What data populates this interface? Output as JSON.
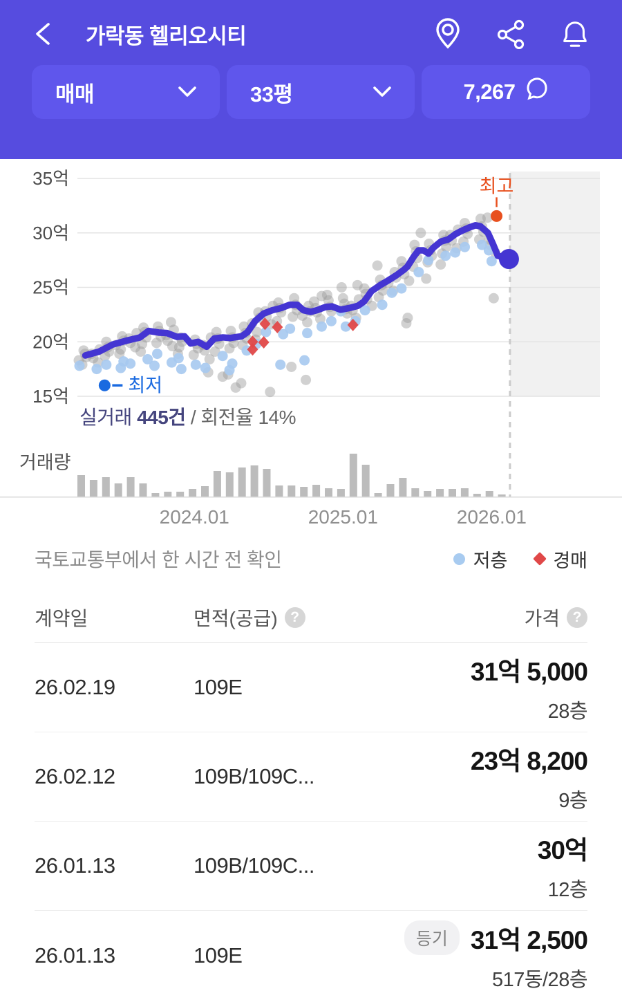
{
  "header": {
    "title": "가락동 헬리오시티",
    "icons": [
      "location-icon",
      "share-icon",
      "bell-icon"
    ],
    "filters": [
      {
        "label": "매매",
        "trailing": "chevron-down"
      },
      {
        "label": "33평",
        "trailing": "chevron-down"
      },
      {
        "label": "7,267",
        "trailing": "chat-bubble"
      }
    ]
  },
  "colors": {
    "header_bg": "#564CDF",
    "button_bg": "#5F56EC",
    "trend_line": "#4435D2",
    "max_marker": "#E8501E",
    "min_marker": "#1A6AE0",
    "gray_point": "#999999",
    "low_floor_point": "#A6C9EF",
    "auction_point": "#E04848",
    "volume_bar": "#BCBCBC",
    "grid_line": "#E3E3E3",
    "future_shade": "#F1F1F1",
    "dashed_line": "#CBCBCB"
  },
  "chart_data": {
    "type": "scatter+line+bar",
    "y_axis": {
      "ticks": [
        {
          "label": "35억",
          "value": 35
        },
        {
          "label": "30억",
          "value": 30
        },
        {
          "label": "25억",
          "value": 25
        },
        {
          "label": "20억",
          "value": 20
        },
        {
          "label": "15억",
          "value": 15
        }
      ],
      "ylim": [
        15,
        35.5
      ],
      "grid": true
    },
    "x_axis": {
      "ticks": [
        {
          "label": "2024.01",
          "m": 9
        },
        {
          "label": "2025.01",
          "m": 21
        },
        {
          "label": "2026.01",
          "m": 33
        }
      ],
      "months_span": "2023.04 - 2026.03"
    },
    "divider_m": 34.48,
    "annotations": {
      "max": {
        "label": "최고",
        "m": 33.4,
        "p": 31.55
      },
      "min": {
        "label": "최저",
        "m": 1.75,
        "p": 16.0
      }
    },
    "trend": [
      [
        0.2,
        18.75
      ],
      [
        1.3,
        19.1
      ],
      [
        2.4,
        19.75
      ],
      [
        3.5,
        20.1
      ],
      [
        4.6,
        20.4
      ],
      [
        5.3,
        21.0
      ],
      [
        6.1,
        20.85
      ],
      [
        6.8,
        20.8
      ],
      [
        7.6,
        20.45
      ],
      [
        8.2,
        20.5
      ],
      [
        8.7,
        19.85
      ],
      [
        9.3,
        20.0
      ],
      [
        10.0,
        19.55
      ],
      [
        10.6,
        20.3
      ],
      [
        11.3,
        20.4
      ],
      [
        11.9,
        20.35
      ],
      [
        12.8,
        20.5
      ],
      [
        13.3,
        20.9
      ],
      [
        13.9,
        21.9
      ],
      [
        14.6,
        22.6
      ],
      [
        15.3,
        22.9
      ],
      [
        16.0,
        23.1
      ],
      [
        16.7,
        23.4
      ],
      [
        17.3,
        23.4
      ],
      [
        17.8,
        22.9
      ],
      [
        18.4,
        22.75
      ],
      [
        18.9,
        22.9
      ],
      [
        19.6,
        23.2
      ],
      [
        20.1,
        23.25
      ],
      [
        20.8,
        22.95
      ],
      [
        21.5,
        23.1
      ],
      [
        22.2,
        23.3
      ],
      [
        22.7,
        23.7
      ],
      [
        23.3,
        24.65
      ],
      [
        24.0,
        25.2
      ],
      [
        24.6,
        25.6
      ],
      [
        25.3,
        26.1
      ],
      [
        25.9,
        26.6
      ],
      [
        26.2,
        26.9
      ],
      [
        26.7,
        27.8
      ],
      [
        27.1,
        28.4
      ],
      [
        27.5,
        28.4
      ],
      [
        27.9,
        28.1
      ],
      [
        28.3,
        28.65
      ],
      [
        28.9,
        29.2
      ],
      [
        29.5,
        29.4
      ],
      [
        30.1,
        29.9
      ],
      [
        30.6,
        30.2
      ],
      [
        31.2,
        30.5
      ],
      [
        31.7,
        30.7
      ],
      [
        32.1,
        30.6
      ],
      [
        32.7,
        30.0
      ],
      [
        33.1,
        29.0
      ],
      [
        33.5,
        27.9
      ],
      [
        34.4,
        27.6
      ]
    ],
    "scatter": {
      "gray": [
        [
          0,
          18.3
        ],
        [
          0,
          18.6
        ],
        [
          0,
          18.9
        ],
        [
          0,
          19.2
        ],
        [
          0,
          17.9
        ],
        [
          1,
          18.5
        ],
        [
          1,
          18.9
        ],
        [
          1,
          19.3
        ],
        [
          1,
          18.1
        ],
        [
          2,
          19.1
        ],
        [
          2,
          19.5
        ],
        [
          2,
          20.0
        ],
        [
          2,
          18.7
        ],
        [
          3,
          19.7
        ],
        [
          3,
          20.1
        ],
        [
          3,
          20.5
        ],
        [
          3,
          19.3
        ],
        [
          3,
          18.9
        ],
        [
          4,
          19.9
        ],
        [
          4,
          20.3
        ],
        [
          4,
          20.8
        ],
        [
          4,
          19.5
        ],
        [
          5,
          20.4
        ],
        [
          5,
          20.9
        ],
        [
          5,
          21.3
        ],
        [
          5,
          19.8
        ],
        [
          5,
          19.1
        ],
        [
          6,
          20.5
        ],
        [
          6,
          21.0
        ],
        [
          6,
          21.4
        ],
        [
          6,
          19.9
        ],
        [
          7,
          20.1
        ],
        [
          7,
          20.6
        ],
        [
          7,
          21.1
        ],
        [
          7,
          19.6
        ],
        [
          7,
          21.8
        ],
        [
          8,
          20.0
        ],
        [
          8,
          20.4
        ],
        [
          8,
          19.5
        ],
        [
          8,
          18.9
        ],
        [
          9,
          19.4
        ],
        [
          9,
          19.8
        ],
        [
          9,
          20.2
        ],
        [
          9,
          18.8
        ],
        [
          10,
          19.2
        ],
        [
          10,
          19.7
        ],
        [
          10,
          20.4
        ],
        [
          10,
          18.4
        ],
        [
          10,
          17.2
        ],
        [
          11,
          19.8
        ],
        [
          11,
          20.3
        ],
        [
          11,
          20.9
        ],
        [
          11,
          19.1
        ],
        [
          11,
          16.8
        ],
        [
          12,
          19.9
        ],
        [
          12,
          20.4
        ],
        [
          12,
          21.0
        ],
        [
          12,
          19.4
        ],
        [
          12,
          17.0
        ],
        [
          12,
          15.8
        ],
        [
          13,
          20.3
        ],
        [
          13,
          20.8
        ],
        [
          13,
          21.4
        ],
        [
          13,
          19.7
        ],
        [
          13,
          16.2
        ],
        [
          14,
          21.7
        ],
        [
          14,
          22.2
        ],
        [
          14,
          22.7
        ],
        [
          14,
          20.9
        ],
        [
          14,
          20.2
        ],
        [
          15,
          22.3
        ],
        [
          15,
          22.8
        ],
        [
          15,
          23.3
        ],
        [
          15,
          21.6
        ],
        [
          15,
          15.4
        ],
        [
          16,
          22.7
        ],
        [
          16,
          23.1
        ],
        [
          16,
          23.6
        ],
        [
          16,
          21.9
        ],
        [
          17,
          22.9
        ],
        [
          17,
          23.4
        ],
        [
          17,
          24.0
        ],
        [
          17,
          22.3
        ],
        [
          17,
          17.7
        ],
        [
          18,
          22.4
        ],
        [
          18,
          22.8
        ],
        [
          18,
          23.3
        ],
        [
          18,
          21.8
        ],
        [
          18,
          16.5
        ],
        [
          19,
          22.7
        ],
        [
          19,
          23.1
        ],
        [
          19,
          23.7
        ],
        [
          19,
          24.2
        ],
        [
          19,
          22.1
        ],
        [
          20,
          22.8
        ],
        [
          20,
          23.2
        ],
        [
          20,
          23.8
        ],
        [
          20,
          24.3
        ],
        [
          21,
          22.6
        ],
        [
          21,
          23.0
        ],
        [
          21,
          23.5
        ],
        [
          21,
          24.0
        ],
        [
          21,
          25.0
        ],
        [
          22,
          22.9
        ],
        [
          22,
          23.3
        ],
        [
          22,
          23.9
        ],
        [
          22,
          25.2
        ],
        [
          22,
          22.2
        ],
        [
          23,
          23.9
        ],
        [
          23,
          24.4
        ],
        [
          23,
          24.9
        ],
        [
          23,
          23.3
        ],
        [
          24,
          24.7
        ],
        [
          24,
          25.2
        ],
        [
          24,
          25.7
        ],
        [
          24,
          24.1
        ],
        [
          24,
          27.0
        ],
        [
          25,
          25.4
        ],
        [
          25,
          25.9
        ],
        [
          25,
          26.4
        ],
        [
          25,
          24.7
        ],
        [
          26,
          26.2
        ],
        [
          26,
          26.8
        ],
        [
          26,
          27.4
        ],
        [
          26,
          25.6
        ],
        [
          26,
          22.2
        ],
        [
          26,
          21.7
        ],
        [
          27,
          27.7
        ],
        [
          27,
          28.3
        ],
        [
          27,
          28.9
        ],
        [
          27,
          26.9
        ],
        [
          27,
          30.0
        ],
        [
          28,
          27.9
        ],
        [
          28,
          28.4
        ],
        [
          28,
          29.0
        ],
        [
          28,
          27.3
        ],
        [
          28,
          25.8
        ],
        [
          29,
          28.7
        ],
        [
          29,
          29.3
        ],
        [
          29,
          29.8
        ],
        [
          29,
          28.1
        ],
        [
          29,
          27.1
        ],
        [
          30,
          29.3
        ],
        [
          30,
          29.8
        ],
        [
          30,
          30.3
        ],
        [
          30,
          28.6
        ],
        [
          31,
          29.9
        ],
        [
          31,
          30.4
        ],
        [
          31,
          30.9
        ],
        [
          31,
          29.2
        ],
        [
          32,
          30.1
        ],
        [
          32,
          30.6
        ],
        [
          32,
          31.3
        ],
        [
          32,
          29.4
        ],
        [
          33,
          28.9
        ],
        [
          33,
          29.4
        ],
        [
          33,
          31.4
        ],
        [
          33,
          28.2
        ],
        [
          33,
          24.0
        ]
      ],
      "low_floor": [
        [
          0,
          17.8
        ],
        [
          1,
          17.5
        ],
        [
          2,
          17.9
        ],
        [
          3,
          18.2
        ],
        [
          3,
          17.6
        ],
        [
          4,
          18.0
        ],
        [
          5,
          18.4
        ],
        [
          6,
          18.9
        ],
        [
          6,
          17.8
        ],
        [
          7,
          18.1
        ],
        [
          8,
          17.5
        ],
        [
          8,
          18.5
        ],
        [
          9,
          17.9
        ],
        [
          10,
          17.6
        ],
        [
          11,
          18.7
        ],
        [
          12,
          18.0
        ],
        [
          12,
          17.4
        ],
        [
          13,
          19.2
        ],
        [
          14,
          19.8
        ],
        [
          15,
          20.9
        ],
        [
          16,
          20.7
        ],
        [
          16,
          17.9
        ],
        [
          17,
          21.2
        ],
        [
          18,
          20.8
        ],
        [
          18,
          18.3
        ],
        [
          19,
          21.4
        ],
        [
          20,
          21.9
        ],
        [
          21,
          22.8
        ],
        [
          21,
          21.4
        ],
        [
          22,
          21.9
        ],
        [
          23,
          22.9
        ],
        [
          24,
          23.4
        ],
        [
          25,
          24.5
        ],
        [
          26,
          24.9
        ],
        [
          27,
          26.4
        ],
        [
          28,
          27.5
        ],
        [
          29,
          27.9
        ],
        [
          30,
          28.2
        ],
        [
          31,
          28.7
        ],
        [
          32,
          28.9
        ],
        [
          33,
          27.4
        ],
        [
          33,
          28.4
        ]
      ],
      "auction": [
        [
          13.7,
          20.0
        ],
        [
          13.7,
          19.3
        ],
        [
          14.6,
          19.95
        ],
        [
          14.7,
          21.65
        ],
        [
          15.7,
          21.35
        ],
        [
          21.8,
          21.55
        ]
      ]
    },
    "volume": {
      "label": "거래량",
      "values": [
        31,
        24,
        28,
        19,
        28,
        19,
        5,
        7,
        7,
        11,
        15,
        37,
        35,
        42,
        45,
        40,
        16,
        16,
        14,
        17,
        12,
        11,
        62,
        46,
        5,
        18,
        27,
        12,
        8,
        11,
        11,
        12,
        4,
        8,
        3
      ]
    },
    "stats": {
      "lead": "실거래 ",
      "count": "445건",
      "rest": " / 회전율 14%"
    },
    "legend": [
      {
        "label": "저층",
        "marker": "circle",
        "color": "#A8CBF0"
      },
      {
        "label": "경매",
        "marker": "diamond",
        "color": "#E04848"
      }
    ]
  },
  "source_row": {
    "text": "국토교통부에서 한 시간 전 확인"
  },
  "table": {
    "headers": [
      {
        "label": "계약일",
        "help": false
      },
      {
        "label": "면적(공급)",
        "help": true
      },
      {
        "label": "가격",
        "help": true
      }
    ],
    "rows": [
      {
        "date": "26.02.19",
        "area": "109E",
        "badge": "",
        "price": "31억 5,000",
        "floor": "28층"
      },
      {
        "date": "26.02.12",
        "area": "109B/109C...",
        "badge": "",
        "price": "23억 8,200",
        "floor": "9층"
      },
      {
        "date": "26.01.13",
        "area": "109B/109C...",
        "badge": "",
        "price": "30억",
        "floor": "12층"
      },
      {
        "date": "26.01.13",
        "area": "109E",
        "badge": "등기",
        "price": "31억 2,500",
        "floor": "517동/28층"
      }
    ]
  }
}
